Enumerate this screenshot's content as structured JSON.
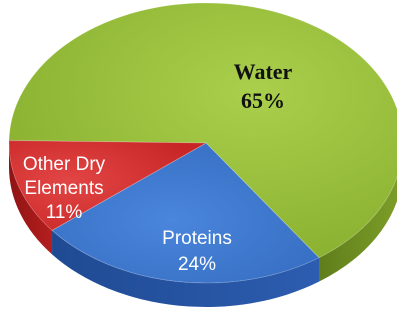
{
  "chart_data": {
    "type": "pie",
    "slices": [
      {
        "label": "Water",
        "value": 65,
        "value_text": "65%",
        "color": "#9ac13b"
      },
      {
        "label": "Proteins",
        "value": 24,
        "value_text": "24%",
        "color": "#3f79cf"
      },
      {
        "label": "Other Dry Elements",
        "label_lines": [
          "Other Dry",
          "Elements"
        ],
        "value": 11,
        "value_text": "11%",
        "color": "#dc3434"
      }
    ]
  }
}
